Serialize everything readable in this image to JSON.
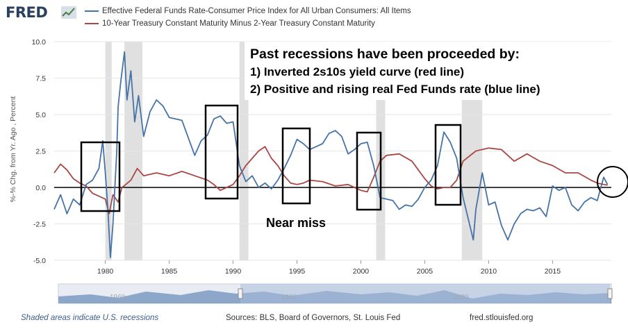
{
  "header": {
    "logo_text": "FRED",
    "logo_icon": "chart-line-icon"
  },
  "legend": [
    {
      "label": "Effective Federal Funds Rate-Consumer Price Index for All Urban Consumers: All Items",
      "color": "#4572a7"
    },
    {
      "label": "10-Year Treasury Constant Maturity Minus 2-Year Treasury Constant Maturity",
      "color": "#aa4643"
    }
  ],
  "chart_data": {
    "type": "line",
    "title": "",
    "xlabel": "",
    "ylabel": "%-% Chg. from Yr. Ago , Percent",
    "xlim": [
      1976,
      2019.6
    ],
    "ylim": [
      -5.0,
      10.0
    ],
    "x_ticks": [
      "1980",
      "1985",
      "1990",
      "1995",
      "2000",
      "2005",
      "2010",
      "2015"
    ],
    "x_tick_values": [
      1980,
      1985,
      1990,
      1995,
      2000,
      2005,
      2010,
      2015
    ],
    "y_ticks": [
      "10.0",
      "7.5",
      "5.0",
      "2.5",
      "0.0",
      "-2.5",
      "-5.0"
    ],
    "y_tick_values": [
      10.0,
      7.5,
      5.0,
      2.5,
      0.0,
      -2.5,
      -5.0
    ],
    "recessions": [
      [
        1980.0,
        1980.5
      ],
      [
        1981.5,
        1982.9
      ],
      [
        1990.5,
        1991.2
      ],
      [
        2001.2,
        2001.9
      ],
      [
        2007.9,
        2009.5
      ]
    ],
    "series": [
      {
        "name": "Effective Federal Funds Rate-Consumer Price Index for All Urban Consumers: All Items",
        "color": "#4572a7",
        "x": [
          1976.0,
          1976.5,
          1977.0,
          1977.5,
          1978.0,
          1978.5,
          1979.0,
          1979.5,
          1979.8,
          1980.0,
          1980.2,
          1980.4,
          1980.6,
          1980.9,
          1981.0,
          1981.2,
          1981.5,
          1981.7,
          1982.0,
          1982.3,
          1982.6,
          1983.0,
          1983.5,
          1984.0,
          1984.5,
          1985.0,
          1986.0,
          1987.0,
          1987.5,
          1988.0,
          1988.5,
          1989.0,
          1989.5,
          1990.0,
          1990.5,
          1991.0,
          1991.5,
          1992.0,
          1992.5,
          1993.0,
          1993.5,
          1994.0,
          1994.5,
          1995.0,
          1995.5,
          1996.0,
          1996.5,
          1997.0,
          1997.5,
          1998.0,
          1998.5,
          1999.0,
          1999.5,
          2000.0,
          2000.5,
          2001.0,
          2001.5,
          2002.0,
          2002.5,
          2003.0,
          2003.5,
          2004.0,
          2004.5,
          2005.0,
          2005.5,
          2006.0,
          2006.5,
          2007.0,
          2007.5,
          2008.0,
          2008.5,
          2008.8,
          2009.0,
          2009.5,
          2010.0,
          2010.5,
          2011.0,
          2011.5,
          2012.0,
          2012.5,
          2013.0,
          2013.5,
          2014.0,
          2014.5,
          2015.0,
          2015.5,
          2016.0,
          2016.5,
          2017.0,
          2017.5,
          2018.0,
          2018.5,
          2019.0,
          2019.3
        ],
        "values": [
          -1.5,
          -0.5,
          -1.8,
          -0.8,
          -1.2,
          0.2,
          0.5,
          1.3,
          3.2,
          1.0,
          -1.5,
          -4.8,
          -2.5,
          2.5,
          5.5,
          7.2,
          9.3,
          6.0,
          8.0,
          4.5,
          6.3,
          3.5,
          5.2,
          6.0,
          5.6,
          4.8,
          4.6,
          2.2,
          3.2,
          3.6,
          4.7,
          4.9,
          4.4,
          4.5,
          1.5,
          0.4,
          0.8,
          0.0,
          0.3,
          -0.1,
          0.5,
          1.3,
          2.2,
          3.3,
          3.0,
          2.6,
          2.8,
          3.0,
          3.7,
          3.9,
          3.5,
          2.3,
          2.6,
          3.0,
          3.1,
          1.5,
          -0.7,
          -0.8,
          -0.9,
          -1.5,
          -1.2,
          -1.3,
          -0.8,
          0.0,
          0.5,
          1.5,
          3.8,
          3.1,
          2.0,
          -0.7,
          -2.5,
          -3.6,
          -1.5,
          1.0,
          -1.2,
          -1.0,
          -2.6,
          -3.6,
          -2.5,
          -1.8,
          -1.5,
          -1.6,
          -1.4,
          -2.0,
          0.1,
          -0.2,
          0.0,
          -1.2,
          -1.6,
          -1.0,
          -0.7,
          -0.9,
          0.7,
          0.2
        ]
      },
      {
        "name": "10-Year Treasury Constant Maturity Minus 2-Year Treasury Constant Maturity",
        "color": "#aa4643",
        "x": [
          1976.0,
          1976.5,
          1977.0,
          1977.5,
          1978.0,
          1978.5,
          1979.0,
          1979.5,
          1980.0,
          1980.3,
          1980.6,
          1981.0,
          1981.3,
          1981.6,
          1982.0,
          1982.5,
          1983.0,
          1984.0,
          1985.0,
          1986.0,
          1987.0,
          1988.0,
          1988.5,
          1989.0,
          1989.5,
          1990.0,
          1990.5,
          1991.0,
          1991.5,
          1992.0,
          1992.5,
          1993.0,
          1993.5,
          1994.0,
          1994.5,
          1995.0,
          1995.5,
          1996.0,
          1997.0,
          1998.0,
          1999.0,
          2000.0,
          2000.5,
          2001.0,
          2001.5,
          2002.0,
          2003.0,
          2004.0,
          2005.0,
          2005.5,
          2006.0,
          2006.5,
          2007.0,
          2007.5,
          2008.0,
          2009.0,
          2010.0,
          2011.0,
          2012.0,
          2013.0,
          2014.0,
          2015.0,
          2016.0,
          2017.0,
          2018.0,
          2018.5,
          2019.0,
          2019.3
        ],
        "values": [
          1.0,
          1.6,
          1.2,
          0.6,
          0.3,
          0.1,
          -0.4,
          -0.6,
          -0.8,
          -1.8,
          -0.5,
          -1.0,
          0.0,
          0.2,
          0.5,
          1.3,
          0.8,
          1.0,
          0.8,
          1.1,
          0.8,
          0.5,
          0.2,
          -0.2,
          0.0,
          0.2,
          0.8,
          1.5,
          2.0,
          2.5,
          2.8,
          2.0,
          1.5,
          0.8,
          0.3,
          0.2,
          0.3,
          0.5,
          0.4,
          0.1,
          0.2,
          -0.2,
          -0.3,
          0.7,
          1.8,
          2.2,
          2.3,
          1.8,
          0.6,
          0.1,
          -0.1,
          0.0,
          0.0,
          0.5,
          1.8,
          2.5,
          2.7,
          2.6,
          1.8,
          2.3,
          1.8,
          1.5,
          1.0,
          1.0,
          0.5,
          0.3,
          0.2,
          0.15
        ]
      }
    ]
  },
  "annotations": {
    "headline_1": "Past recessions have been proceeded by:",
    "headline_2": "1) Inverted 2s10s yield curve (red line)",
    "headline_3": "2) Positive and rising real Fed Funds rate (blue line)",
    "near_miss": "Near miss"
  },
  "navigator": {
    "labels": [
      "1960",
      "1980",
      "2000"
    ]
  },
  "footer": {
    "note": "Shaded areas indicate U.S. recessions",
    "sources": "Sources: BLS, Board of Governors, St. Louis Fed",
    "url": "fred.stlouisfed.org"
  }
}
